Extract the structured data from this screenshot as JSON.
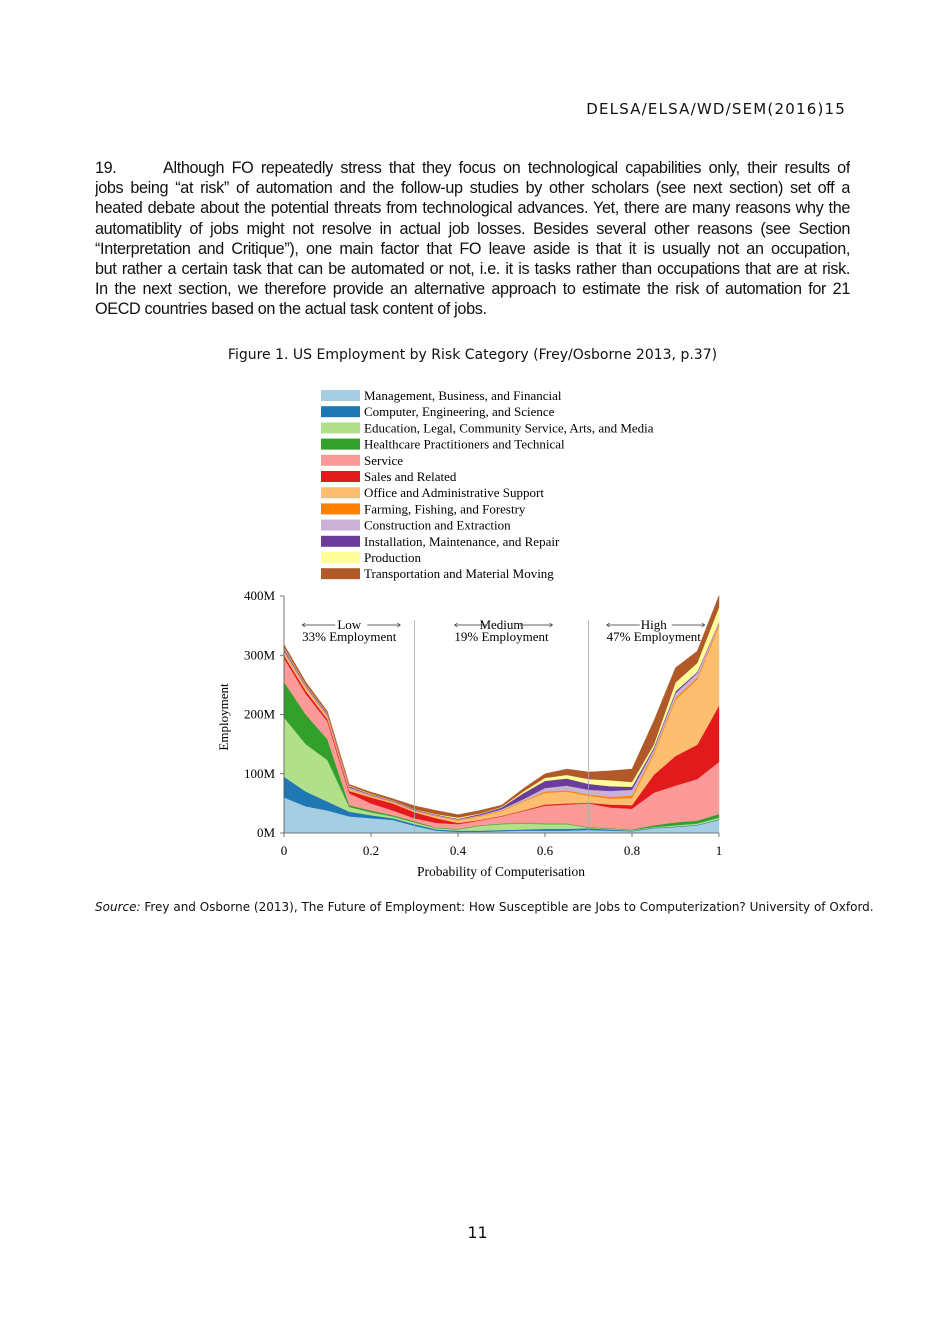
{
  "header": {
    "doc_code": "DELSA/ELSA/WD/SEM(2016)15"
  },
  "paragraph": {
    "number": "19.",
    "lines": [
      "Although FO repeatedly stress that they focus on technological capabilities only, their results of",
      "jobs being “at risk” of automation and the follow-up studies by other scholars (see next section) set off a",
      "heated debate about the potential threats from technological advances. Yet, there are many reasons why the",
      "automatiblity of jobs might not resolve in actual job losses. Besides several other reasons (see Section",
      "“Interpretation and Critique”), one main factor that FO leave aside is that it is usually not an occupation,",
      "but rather a certain task that can be automated or not, i.e. it is tasks rather than occupations that are at risk.",
      "In the next section, we therefore provide an alternative approach to estimate the risk of automation for 21",
      "OECD countries based on the actual task content of jobs."
    ]
  },
  "figure": {
    "caption": "Figure 1.   US Employment by Risk Category (Frey/Osborne 2013, p.37)"
  },
  "source": {
    "label": "Source:",
    "text": " Frey and Osborne (2013), The Future of Employment: How Susceptible are Jobs to Computerization? University of Oxford."
  },
  "page_number": "11",
  "chart_data": {
    "type": "area",
    "stacked": true,
    "xlabel": "Probability of Computerisation",
    "ylabel": "Employment",
    "xlim": [
      0,
      1
    ],
    "ylim": [
      0,
      400
    ],
    "x_ticks": [
      "0",
      "0.2",
      "0.4",
      "0.6",
      "0.8",
      "1"
    ],
    "y_ticks": [
      "0M",
      "100M",
      "200M",
      "300M",
      "400M"
    ],
    "legend_position": "top",
    "region_dividers": [
      0.3,
      0.7
    ],
    "regions": [
      {
        "label": "Low",
        "share": "33% Employment",
        "center": 0.15
      },
      {
        "label": "Medium",
        "share": "19% Employment",
        "center": 0.5
      },
      {
        "label": "High",
        "share": "47% Employment",
        "center": 0.85
      }
    ],
    "x": [
      0,
      0.05,
      0.1,
      0.15,
      0.2,
      0.25,
      0.3,
      0.35,
      0.4,
      0.45,
      0.5,
      0.55,
      0.6,
      0.65,
      0.7,
      0.75,
      0.8,
      0.85,
      0.9,
      0.95,
      1
    ],
    "series": [
      {
        "name": "Management, Business, and Financial",
        "color": "#a6cee3",
        "values": [
          60,
          45,
          38,
          28,
          25,
          22,
          12,
          4,
          2,
          2,
          3,
          4,
          4,
          4,
          5,
          4,
          3,
          8,
          10,
          13,
          22
        ]
      },
      {
        "name": "Computer, Engineering, and Science",
        "color": "#1f78b4",
        "values": [
          35,
          25,
          15,
          8,
          5,
          3,
          3,
          2,
          2,
          2,
          2,
          2,
          3,
          3,
          3,
          2,
          1,
          1,
          1,
          1,
          1
        ]
      },
      {
        "name": "Education, Legal, Community Service, Arts, and Media",
        "color": "#b2df8a",
        "values": [
          100,
          80,
          70,
          8,
          5,
          3,
          3,
          2,
          2,
          8,
          10,
          10,
          8,
          8,
          1,
          1,
          1,
          1,
          2,
          2,
          3
        ]
      },
      {
        "name": "Healthcare Practitioners and Technical",
        "color": "#33a02c",
        "values": [
          60,
          50,
          35,
          3,
          3,
          2,
          2,
          1,
          1,
          1,
          1,
          1,
          1,
          1,
          1,
          1,
          1,
          3,
          5,
          5,
          6
        ]
      },
      {
        "name": "Service",
        "color": "#fb9a99",
        "values": [
          40,
          35,
          30,
          20,
          12,
          8,
          5,
          8,
          8,
          8,
          12,
          20,
          30,
          32,
          40,
          35,
          35,
          55,
          62,
          70,
          88
        ]
      },
      {
        "name": "Sales and Related",
        "color": "#e31a1c",
        "values": [
          5,
          5,
          4,
          4,
          10,
          12,
          10,
          8,
          2,
          1,
          1,
          1,
          2,
          2,
          1,
          5,
          6,
          30,
          50,
          58,
          95
        ]
      },
      {
        "name": "Office and Administrative Support",
        "color": "#fdbf6f",
        "values": [
          5,
          5,
          4,
          3,
          2,
          2,
          2,
          3,
          4,
          6,
          8,
          15,
          20,
          20,
          12,
          10,
          12,
          35,
          95,
          110,
          135
        ]
      },
      {
        "name": "Farming, Fishing, and Forestry",
        "color": "#ff7f00",
        "values": [
          1,
          1,
          1,
          1,
          1,
          0.5,
          0.5,
          1,
          1,
          1,
          1,
          1,
          2,
          2,
          2,
          3,
          4,
          3,
          3,
          3,
          3
        ]
      },
      {
        "name": "Construction and Extraction",
        "color": "#cab2d6",
        "values": [
          2,
          2,
          2,
          2,
          1,
          1,
          1,
          1,
          1,
          1,
          2,
          3,
          6,
          8,
          8,
          10,
          10,
          5,
          8,
          8,
          2
        ]
      },
      {
        "name": "Installation, Maintenance, and Repair",
        "color": "#6a3d9a",
        "values": [
          3,
          2,
          2,
          2,
          1,
          1,
          1,
          1,
          1,
          2,
          3,
          10,
          12,
          12,
          10,
          8,
          5,
          3,
          3,
          2,
          1
        ]
      },
      {
        "name": "Production",
        "color": "#ffff99",
        "values": [
          2,
          1,
          1,
          1,
          1,
          0.5,
          0.5,
          1,
          2,
          1,
          1,
          3,
          5,
          6,
          8,
          10,
          8,
          5,
          15,
          15,
          25
        ]
      },
      {
        "name": "Transportation and Material Moving",
        "color": "#b15928",
        "values": [
          5,
          4,
          3,
          2,
          3,
          3,
          6,
          6,
          5,
          5,
          3,
          5,
          7,
          10,
          12,
          16,
          22,
          40,
          25,
          20,
          20
        ]
      }
    ]
  }
}
